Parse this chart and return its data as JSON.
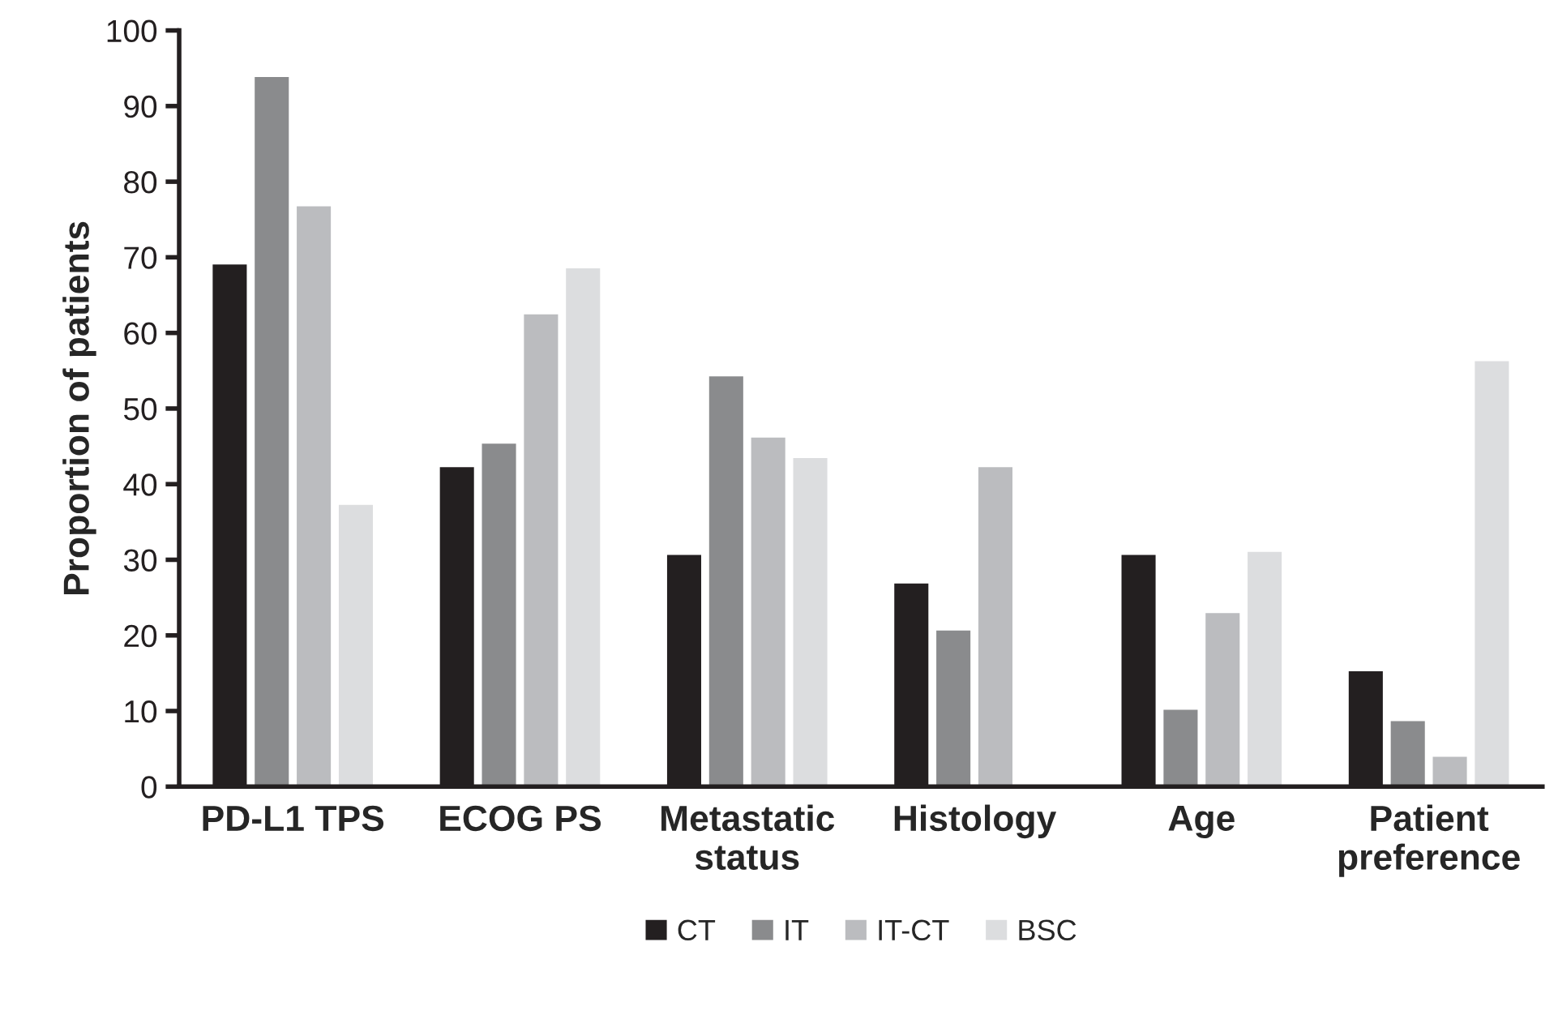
{
  "chart_data": {
    "type": "bar",
    "ylabel": "Proportion of patients",
    "categories": [
      "PD-L1 TPS",
      "ECOG PS",
      "Metastatic\nstatus",
      "Histology",
      "Age",
      "Patient\npreference"
    ],
    "series": [
      {
        "name": "CT",
        "color": "#231f20",
        "values": [
          69.2,
          42.4,
          30.8,
          27.0,
          30.8,
          15.4
        ]
      },
      {
        "name": "IT",
        "color": "#8a8b8d",
        "values": [
          94.0,
          45.5,
          54.4,
          20.8,
          10.3,
          8.8
        ]
      },
      {
        "name": "IT-CT",
        "color": "#bbbcbf",
        "values": [
          76.9,
          62.6,
          46.3,
          42.4,
          23.1,
          4.1
        ]
      },
      {
        "name": "BSC",
        "color": "#dcdddf",
        "values": [
          37.4,
          68.7,
          43.6,
          null,
          31.2,
          56.4
        ]
      }
    ],
    "ylim": [
      0,
      100
    ],
    "yticks": [
      0,
      10,
      20,
      30,
      40,
      50,
      60,
      70,
      80,
      90,
      100
    ],
    "grid": false,
    "legend": "bottom"
  }
}
